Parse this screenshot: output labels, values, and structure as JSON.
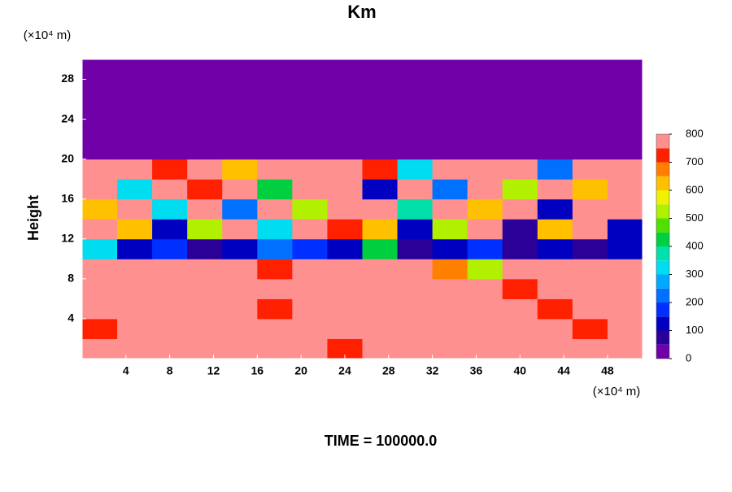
{
  "chart_data": {
    "type": "contour",
    "title": "Km",
    "y_label": "Height",
    "x_unit": "(×10⁴ m)",
    "y_unit": "(×10⁴ m)",
    "footer": "TIME = 100000.0",
    "xlim": [
      0,
      51.2
    ],
    "ylim": [
      0,
      30
    ],
    "xticks": [
      4,
      8,
      12,
      16,
      20,
      24,
      28,
      32,
      36,
      40,
      44,
      48
    ],
    "yticks": [
      4,
      8,
      12,
      16,
      20,
      24,
      28
    ],
    "x": [
      1.6,
      4.8,
      8,
      11.2,
      14.4,
      17.6,
      20.8,
      24,
      27.2,
      30.4,
      33.6,
      36.8,
      40,
      43.2,
      46.4,
      49.6
    ],
    "y": [
      1,
      3,
      5,
      7,
      9,
      11,
      13,
      15,
      17,
      19,
      21,
      23,
      25,
      27,
      29
    ],
    "values": [
      [
        800,
        800,
        800,
        800,
        800,
        800,
        800,
        700,
        800,
        800,
        800,
        800,
        800,
        800,
        800,
        800
      ],
      [
        700,
        800,
        800,
        800,
        800,
        800,
        800,
        800,
        800,
        800,
        800,
        800,
        800,
        750,
        700,
        800
      ],
      [
        800,
        800,
        800,
        800,
        750,
        700,
        800,
        800,
        800,
        800,
        800,
        800,
        750,
        700,
        800,
        800
      ],
      [
        750,
        800,
        800,
        800,
        800,
        800,
        800,
        800,
        800,
        800,
        800,
        800,
        700,
        800,
        750,
        800
      ],
      [
        800,
        800,
        800,
        800,
        800,
        700,
        750,
        800,
        800,
        800,
        650,
        500,
        800,
        800,
        800,
        800
      ],
      [
        300,
        100,
        150,
        50,
        100,
        200,
        150,
        100,
        400,
        50,
        100,
        150,
        50,
        100,
        50,
        100
      ],
      [
        800,
        600,
        100,
        500,
        800,
        300,
        800,
        700,
        600,
        100,
        500,
        800,
        50,
        600,
        800,
        100
      ],
      [
        600,
        800,
        300,
        800,
        200,
        800,
        500,
        800,
        800,
        350,
        800,
        600,
        800,
        100,
        800,
        800
      ],
      [
        800,
        300,
        800,
        700,
        800,
        400,
        800,
        800,
        100,
        800,
        200,
        800,
        500,
        800,
        600,
        800
      ],
      [
        800,
        800,
        700,
        800,
        600,
        800,
        800,
        800,
        700,
        300,
        800,
        800,
        800,
        200,
        800,
        750
      ],
      [
        0,
        0,
        0,
        0,
        0,
        0,
        0,
        0,
        0,
        0,
        0,
        0,
        0,
        0,
        0,
        0
      ],
      [
        0,
        0,
        0,
        0,
        0,
        0,
        0,
        0,
        0,
        0,
        0,
        0,
        0,
        0,
        0,
        0
      ],
      [
        0,
        0,
        0,
        0,
        0,
        0,
        0,
        0,
        0,
        0,
        0,
        0,
        0,
        0,
        0,
        0
      ],
      [
        0,
        0,
        0,
        0,
        0,
        0,
        0,
        0,
        0,
        0,
        0,
        0,
        0,
        0,
        0,
        0
      ],
      [
        0,
        0,
        0,
        0,
        0,
        0,
        0,
        0,
        0,
        0,
        0,
        0,
        0,
        0,
        0,
        0
      ]
    ],
    "levels": [
      0,
      50,
      100,
      150,
      200,
      250,
      300,
      350,
      400,
      450,
      500,
      550,
      600,
      650,
      700,
      750,
      800
    ],
    "colors": [
      "#7000a8",
      "#2a0098",
      "#0000c0",
      "#0030ff",
      "#0070ff",
      "#00a8ff",
      "#00dcf0",
      "#00e0a8",
      "#00d040",
      "#50e000",
      "#b0f000",
      "#f0f000",
      "#ffc000",
      "#ff8000",
      "#ff2000",
      "#ff9090"
    ],
    "colorbar_ticks": [
      0,
      100,
      200,
      300,
      400,
      500,
      600,
      700,
      800
    ]
  }
}
